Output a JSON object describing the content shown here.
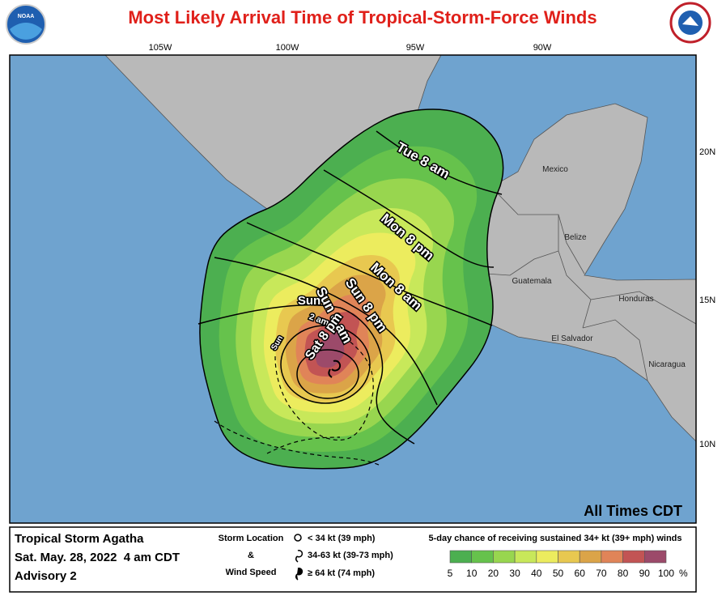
{
  "header": {
    "title": "Most Likely Arrival Time of Tropical-Storm-Force Winds",
    "left_logo": "NOAA"
  },
  "map": {
    "longitudes": [
      "105W",
      "100W",
      "95W",
      "90W"
    ],
    "latitudes": [
      "20N",
      "15N",
      "10N"
    ],
    "places": [
      "Mexico",
      "Belize",
      "Guatemala",
      "Honduras",
      "El Salvador",
      "Nicaragua"
    ],
    "arrival_labels": [
      "Tue 8 am",
      "Mon 8 pm",
      "Mon 8 am",
      "Sun 8 pm",
      "Sun 8 am",
      "Sun",
      "2 am",
      "Sat 8 pm",
      "Sun"
    ],
    "times_note": "All Times CDT"
  },
  "footer": {
    "storm": "Tropical Storm Agatha",
    "date": "Sat. May. 28, 2022  4 am CDT",
    "advisory": "Advisory 2",
    "location_title": "Storm Location",
    "amp": "&",
    "wind_title": "Wind Speed",
    "symbols": [
      "< 34 kt (39 mph)",
      "34-63 kt (39-73 mph)",
      "≥ 64 kt (74 mph)"
    ],
    "scale_title": "5-day chance of receiving sustained 34+ kt (39+ mph) winds",
    "scale_ticks": [
      5,
      10,
      20,
      30,
      40,
      50,
      60,
      70,
      80,
      90,
      100
    ],
    "scale_unit": "%",
    "scale_colors": [
      "#4caf50",
      "#66c24c",
      "#98d64f",
      "#c8e85a",
      "#ecec5e",
      "#e8c850",
      "#dba448",
      "#e08458",
      "#c25454",
      "#9c4a6a",
      "#a64cc4"
    ]
  }
}
